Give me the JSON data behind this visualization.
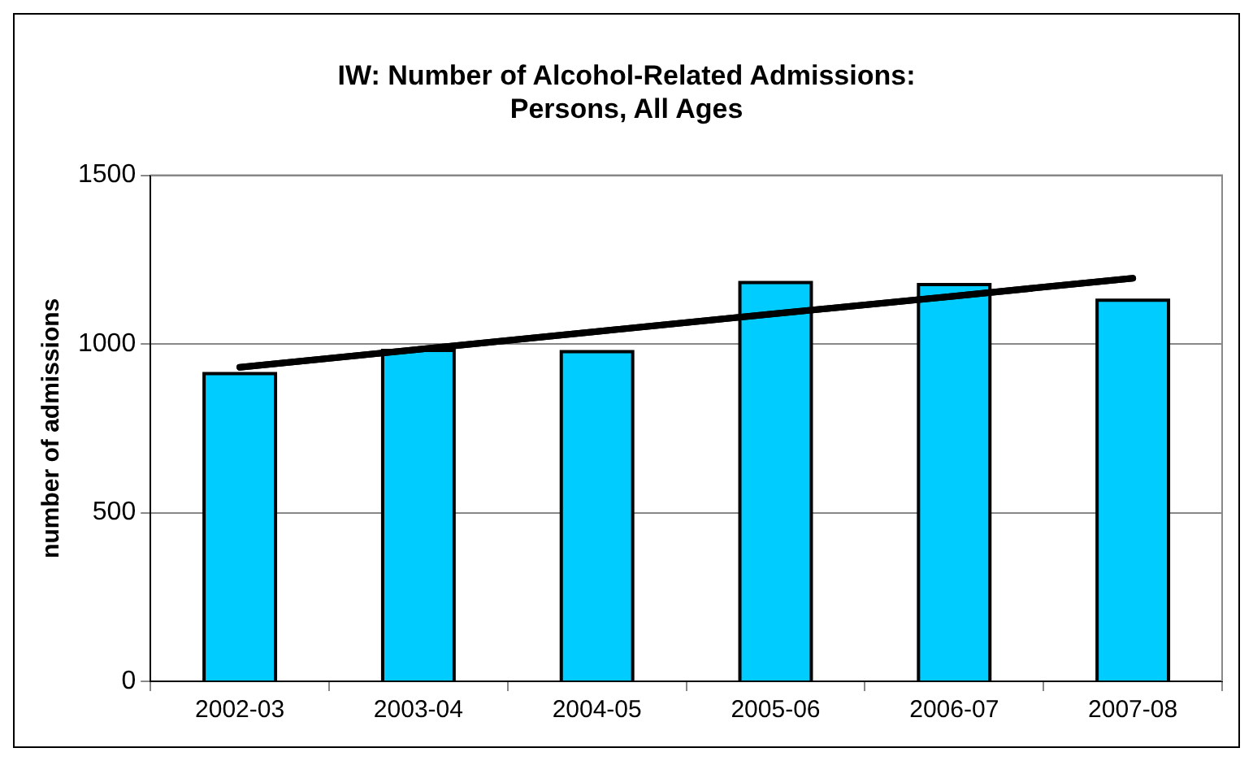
{
  "chart_data": {
    "type": "bar",
    "title": "IW: Number of Alcohol-Related Admissions:\nPersons, All Ages",
    "ylabel": "number of admissions",
    "categories": [
      "2002-03",
      "2003-04",
      "2004-05",
      "2005-06",
      "2006-07",
      "2007-08"
    ],
    "series": [
      {
        "color": "#00ccff",
        "values": [
          912,
          981,
          977,
          1182,
          1176,
          1130
        ]
      },
      {
        "type": "line",
        "color": "#000000",
        "values": [
          931,
          984,
          1037,
          1090,
          1142,
          1195
        ]
      }
    ],
    "ylim": [
      0,
      1500
    ],
    "yticks": [
      0,
      500,
      1000,
      1500
    ],
    "grid": "y",
    "legend": false,
    "marker": "none"
  }
}
